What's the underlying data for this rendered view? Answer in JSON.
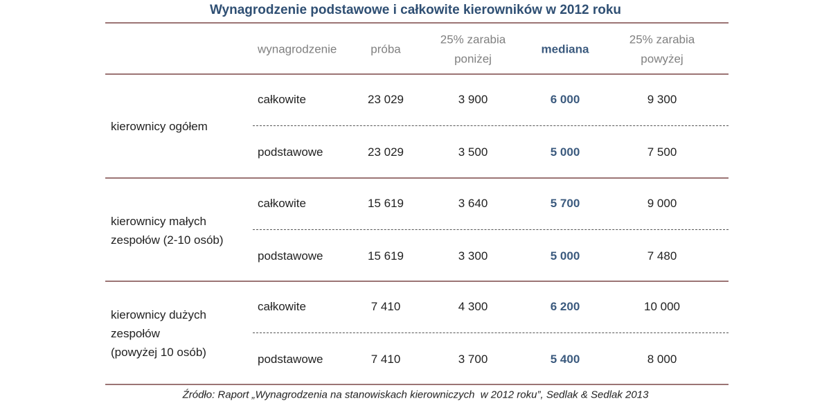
{
  "title": "Wynagrodzenie podstawowe i całkowite kierowników w 2012 roku",
  "table": {
    "columns": [
      [
        "wynagrodzenie"
      ],
      [
        "próba"
      ],
      [
        "25% zarabia",
        "poniżej"
      ],
      [
        "mediana"
      ],
      [
        "25% zarabia",
        "powyżej"
      ]
    ],
    "groups": [
      {
        "label": [
          "kierownicy ogółem"
        ],
        "rows": [
          [
            "całkowite",
            "23 029",
            "3 900",
            "6 000",
            "9 300"
          ],
          [
            "podstawowe",
            "23 029",
            "3 500",
            "5 000",
            "7 500"
          ]
        ]
      },
      {
        "label": [
          "kierownicy małych",
          "zespołów (2-10 osób)"
        ],
        "rows": [
          [
            "całkowite",
            "15 619",
            "3 640",
            "5 700",
            "9 000"
          ],
          [
            "podstawowe",
            "15 619",
            "3 300",
            "5 000",
            "7 480"
          ]
        ]
      },
      {
        "label": [
          "kierownicy dużych",
          "zespołów",
          "(powyżej 10 osób)"
        ],
        "rows": [
          [
            "całkowite",
            "7 410",
            "4 300",
            "6 200",
            "10 000"
          ],
          [
            "podstawowe",
            "7 410",
            "3 700",
            "5 400",
            "8 000"
          ]
        ]
      }
    ]
  },
  "source": "Źródło: Raport „Wynagrodzenia na stanowiskach kierowniczych  w 2012 roku”, Sedlak & Sedlak 2013"
}
